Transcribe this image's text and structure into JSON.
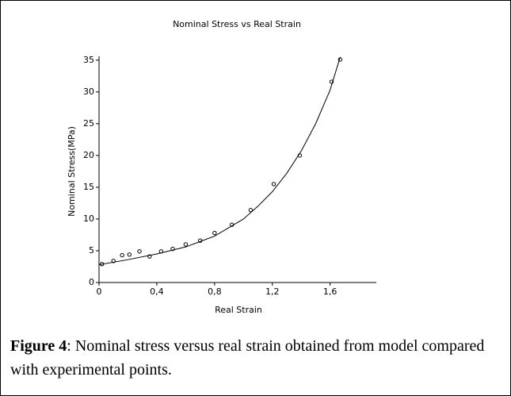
{
  "chart_data": {
    "type": "scatter",
    "title": "Nominal Stress vs Real Strain",
    "xlabel": "Real Strain",
    "ylabel": "Nominal Stress(MPa)",
    "xlim": [
      0,
      1.92
    ],
    "ylim": [
      0,
      35.6
    ],
    "xticks": [
      0,
      {
        "value": 0.4,
        "label": "0,4"
      },
      {
        "value": 0.8,
        "label": "0,8"
      },
      {
        "value": 1.2,
        "label": "1,2"
      },
      {
        "value": 1.6,
        "label": "1,6"
      }
    ],
    "yticks": [
      0,
      5,
      10,
      15,
      20,
      25,
      30,
      35
    ],
    "series": [
      {
        "marker": "circle",
        "color": "#000000",
        "x": [
          0.02,
          0.1,
          0.16,
          0.21,
          0.28,
          0.35,
          0.43,
          0.51,
          0.6,
          0.7,
          0.8,
          0.92,
          1.05,
          1.21,
          1.39,
          1.61,
          1.67
        ],
        "values": [
          2.9,
          3.4,
          4.3,
          4.4,
          4.9,
          4.1,
          4.9,
          5.3,
          6.0,
          6.6,
          7.8,
          9.1,
          11.4,
          15.5,
          20.0,
          31.6,
          35.1
        ]
      },
      {
        "marker": "none",
        "color": "#000000",
        "x": [
          0,
          0.2,
          0.4,
          0.6,
          0.8,
          1.0,
          1.1,
          1.2,
          1.3,
          1.4,
          1.5,
          1.6,
          1.67
        ],
        "values": [
          2.8,
          3.6,
          4.5,
          5.6,
          7.3,
          10.0,
          12.0,
          14.3,
          17.2,
          20.7,
          25.0,
          30.3,
          35.5
        ]
      }
    ]
  },
  "caption": {
    "label": "Figure 4",
    "text": ": Nominal stress versus real strain obtained from model compared with experimental points."
  }
}
